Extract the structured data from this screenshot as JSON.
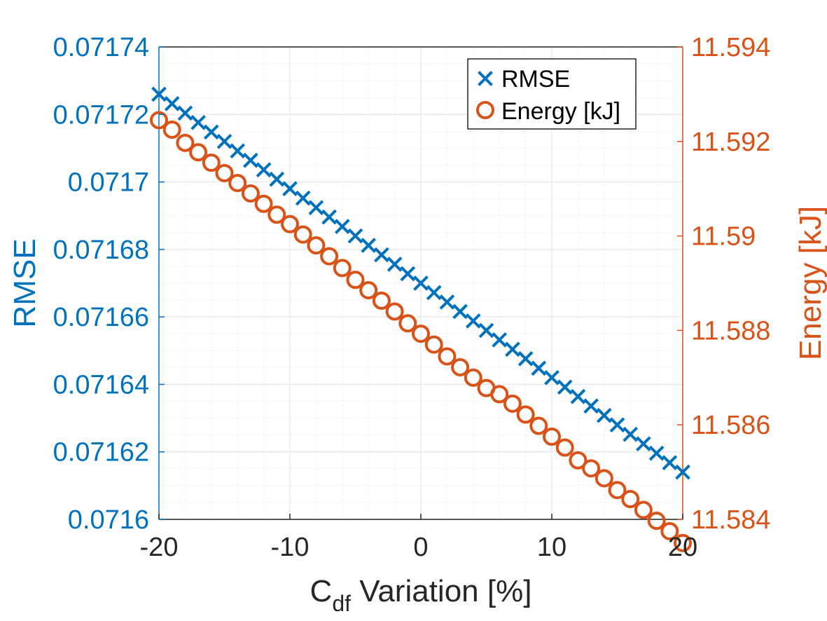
{
  "chart_data": {
    "type": "scatter",
    "x": [
      -20,
      -19,
      -18,
      -17,
      -16,
      -15,
      -14,
      -13,
      -12,
      -11,
      -10,
      -9,
      -8,
      -7,
      -6,
      -5,
      -4,
      -3,
      -2,
      -1,
      0,
      1,
      2,
      3,
      4,
      5,
      6,
      7,
      8,
      9,
      10,
      11,
      12,
      13,
      14,
      15,
      16,
      17,
      18,
      19,
      20
    ],
    "series": [
      {
        "name": "RMSE",
        "axis": "left",
        "marker": "x",
        "color": "#0072BD",
        "values": [
          0.071726,
          0.0717232,
          0.0717204,
          0.0717176,
          0.0717148,
          0.071712,
          0.0717092,
          0.0717064,
          0.0717036,
          0.0717008,
          0.071698,
          0.0716952,
          0.0716924,
          0.0716896,
          0.0716868,
          0.071684,
          0.0716812,
          0.0716784,
          0.0716756,
          0.0716728,
          0.07167,
          0.0716672,
          0.0716644,
          0.0716616,
          0.0716588,
          0.071656,
          0.0716532,
          0.0716504,
          0.0716476,
          0.0716448,
          0.071642,
          0.0716392,
          0.0716364,
          0.0716336,
          0.0716308,
          0.071628,
          0.0716252,
          0.0716224,
          0.0716196,
          0.0716168,
          0.071614
        ]
      },
      {
        "name": "Energy [kJ]",
        "axis": "right",
        "marker": "o",
        "color": "#D95319",
        "values": [
          11.59245,
          11.59225,
          11.59197,
          11.59177,
          11.59155,
          11.59133,
          11.59112,
          11.5909,
          11.59068,
          11.59045,
          11.59025,
          11.59003,
          11.5898,
          11.58957,
          11.58932,
          11.58907,
          11.58885,
          11.58863,
          11.5884,
          11.58815,
          11.58793,
          11.5877,
          11.58745,
          11.58722,
          11.587,
          11.58678,
          11.58665,
          11.58645,
          11.58622,
          11.58598,
          11.58575,
          11.58552,
          11.58525,
          11.58508,
          11.58487,
          11.58462,
          11.58443,
          11.5842,
          11.58397,
          11.58375,
          11.5835
        ]
      }
    ],
    "xlabel": {
      "main": "C",
      "sub": "df",
      "rest": " Variation [%]"
    },
    "ylabel_left": "RMSE",
    "ylabel_right": "Energy [kJ]",
    "xlim": [
      -20,
      20
    ],
    "ylim_left": [
      0.0716,
      0.07174
    ],
    "ylim_right": [
      11.584,
      11.594
    ],
    "xticks": [
      -20,
      -10,
      0,
      10,
      20
    ],
    "xtick_labels": [
      "-20",
      "-10",
      "0",
      "10",
      "20"
    ],
    "yticks_left": [
      0.0716,
      0.07162,
      0.07164,
      0.07166,
      0.07168,
      0.0717,
      0.07172,
      0.07174
    ],
    "ytick_labels_left": [
      "0.0716",
      "0.07162",
      "0.07164",
      "0.07166",
      "0.07168",
      "0.0717",
      "0.07172",
      "0.07174"
    ],
    "yticks_right": [
      11.584,
      11.586,
      11.588,
      11.59,
      11.592,
      11.594
    ],
    "ytick_labels_right": [
      "11.584",
      "11.586",
      "11.588",
      "11.59",
      "11.592",
      "11.594"
    ],
    "grid": true,
    "minor_grid": true,
    "legend": {
      "position": "top-right",
      "entries": [
        "RMSE",
        "Energy [kJ]"
      ]
    }
  }
}
